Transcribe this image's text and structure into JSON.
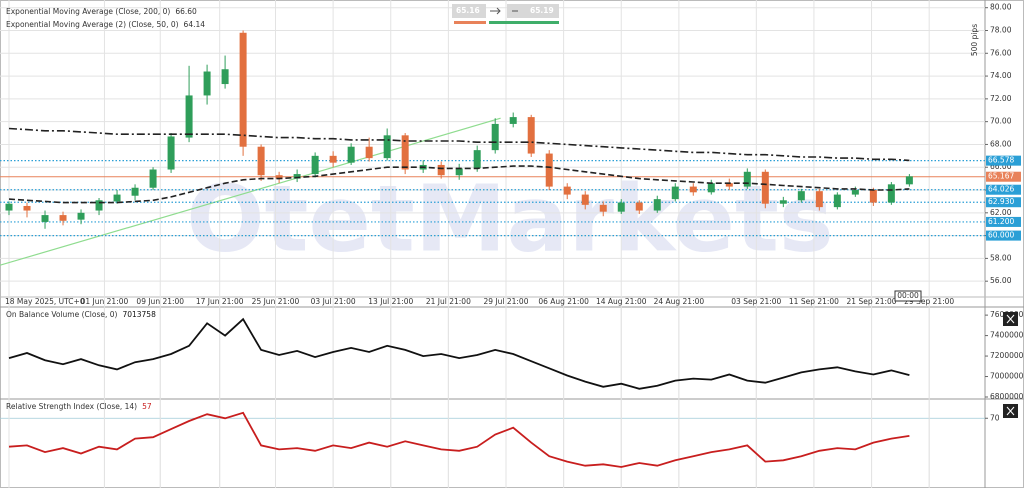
{
  "chart_data": [
    {
      "type": "candlestick",
      "watermark": "OtetMarkets",
      "sell_label": "65.16",
      "buy_label": "65.19",
      "scale_label": "500 pips",
      "time_label": "00:00",
      "up_color": "#2f9e5a",
      "down_color": "#e2703f",
      "xlim": [
        -0.5,
        54.2
      ],
      "xticks": [
        {
          "value": 0,
          "label": "18 May 2025, UTC+0"
        },
        {
          "value": 5.3,
          "label": "01 Jun 21:00"
        },
        {
          "value": 8.4,
          "label": "09 Jun 21:00"
        },
        {
          "value": 11.7,
          "label": "17 Jun 21:00"
        },
        {
          "value": 14.8,
          "label": "25 Jun 21:00"
        },
        {
          "value": 18,
          "label": "03 Jul 21:00"
        },
        {
          "value": 21.2,
          "label": "13 Jul 21:00"
        },
        {
          "value": 24.4,
          "label": "21 Jul 21:00"
        },
        {
          "value": 27.6,
          "label": "29 Jul 21:00"
        },
        {
          "value": 30.8,
          "label": "06 Aug 21:00"
        },
        {
          "value": 34,
          "label": "14 Aug 21:00"
        },
        {
          "value": 37.2,
          "label": "24 Aug 21:00"
        },
        {
          "value": 41.5,
          "label": "03 Sep 21:00"
        },
        {
          "value": 44.7,
          "label": "11 Sep 21:00"
        },
        {
          "value": 47.9,
          "label": "21 Sep 21:00"
        },
        {
          "value": 51.1,
          "label": "29 Sep 21:00"
        }
      ],
      "ylim": [
        54.7,
        80.5
      ],
      "yticks": [
        {
          "value": 56,
          "label": "56.00"
        },
        {
          "value": 58,
          "label": "58.00"
        },
        {
          "value": 60,
          "label": "60.00"
        },
        {
          "value": 62,
          "label": "62.00"
        },
        {
          "value": 64,
          "label": "64.00"
        },
        {
          "value": 66,
          "label": "66.00"
        },
        {
          "value": 68,
          "label": "68.00"
        },
        {
          "value": 70,
          "label": "70.00"
        },
        {
          "value": 72,
          "label": "72.00"
        },
        {
          "value": 74,
          "label": "74.00"
        },
        {
          "value": 76,
          "label": "76.00"
        },
        {
          "value": 78,
          "label": "78.00"
        },
        {
          "value": 80,
          "label": "80.00"
        }
      ],
      "grid": true,
      "open": [
        62.2,
        62.6,
        61.2,
        61.8,
        61.4,
        62.2,
        63.0,
        63.5,
        64.2,
        65.8,
        68.6,
        72.3,
        73.3,
        77.8,
        67.8,
        65.3,
        65.0,
        65.4,
        67.0,
        66.4,
        67.8,
        66.8,
        68.8,
        65.8,
        66.2,
        65.3,
        65.9,
        67.5,
        69.8,
        70.4,
        67.2,
        64.3,
        63.6,
        62.7,
        62.1,
        62.9,
        62.2,
        63.2,
        64.3,
        63.8,
        64.6,
        64.3,
        65.6,
        62.8,
        63.1,
        63.9,
        62.5,
        63.6,
        64.0,
        62.9,
        64.5
      ],
      "close": [
        62.8,
        62.2,
        61.8,
        61.3,
        62.0,
        63.1,
        63.6,
        64.2,
        65.8,
        68.7,
        72.3,
        74.4,
        74.6,
        67.8,
        65.3,
        65.0,
        65.4,
        67.0,
        66.4,
        67.8,
        66.8,
        68.8,
        65.8,
        66.2,
        65.3,
        65.9,
        67.5,
        69.8,
        70.4,
        67.2,
        64.3,
        63.6,
        62.7,
        62.1,
        62.9,
        62.2,
        63.2,
        64.3,
        63.8,
        64.6,
        64.3,
        65.6,
        62.8,
        63.1,
        63.9,
        62.5,
        63.6,
        64.0,
        62.9,
        64.5,
        65.2
      ],
      "high": [
        63.0,
        62.9,
        62.2,
        62.1,
        62.3,
        63.3,
        64.0,
        64.5,
        66.0,
        69.0,
        74.9,
        75.0,
        75.8,
        78.0,
        68.0,
        65.6,
        65.8,
        67.3,
        67.4,
        68.1,
        68.6,
        69.4,
        69.0,
        66.6,
        66.5,
        66.3,
        67.9,
        70.3,
        70.8,
        70.6,
        67.5,
        64.6,
        63.9,
        63.0,
        63.2,
        63.1,
        63.5,
        64.6,
        64.6,
        64.9,
        65.0,
        65.9,
        65.8,
        63.4,
        64.1,
        64.1,
        63.8,
        64.3,
        64.2,
        64.7,
        65.4
      ],
      "low": [
        61.8,
        61.6,
        60.6,
        60.9,
        61.0,
        61.8,
        62.8,
        63.1,
        64.0,
        65.5,
        68.2,
        71.5,
        72.9,
        67.0,
        64.8,
        64.6,
        64.7,
        65.1,
        66.0,
        66.2,
        66.5,
        66.6,
        65.4,
        65.5,
        65.0,
        64.9,
        65.6,
        67.2,
        69.5,
        66.9,
        64.0,
        63.2,
        62.3,
        61.7,
        61.9,
        61.9,
        62.0,
        63.0,
        63.5,
        63.6,
        64.0,
        64.1,
        62.4,
        62.5,
        62.9,
        62.2,
        62.3,
        63.4,
        62.6,
        62.7,
        64.3
      ],
      "series": [
        {
          "name": "Exponential Moving Average (Close, 200, 0)",
          "last_label": "66.60",
          "color": "#222222",
          "dash": "8 3 2 3",
          "values": [
            69.4,
            69.3,
            69.2,
            69.2,
            69.1,
            69.0,
            68.9,
            68.9,
            68.9,
            68.9,
            68.9,
            68.9,
            68.9,
            68.8,
            68.7,
            68.6,
            68.6,
            68.5,
            68.5,
            68.4,
            68.4,
            68.4,
            68.3,
            68.3,
            68.3,
            68.3,
            68.2,
            68.2,
            68.2,
            68.2,
            68.1,
            68.0,
            67.9,
            67.8,
            67.7,
            67.6,
            67.5,
            67.4,
            67.3,
            67.3,
            67.2,
            67.1,
            67.1,
            67.0,
            66.9,
            66.9,
            66.8,
            66.8,
            66.7,
            66.7,
            66.6
          ]
        },
        {
          "name": "Exponential Moving Average (2) (Close, 50, 0)",
          "last_label": "64.14",
          "color": "#222222",
          "dash": "6 3",
          "values": [
            63.2,
            63.1,
            63.0,
            62.9,
            62.9,
            62.9,
            62.9,
            63.0,
            63.1,
            63.4,
            63.8,
            64.2,
            64.6,
            64.9,
            65.0,
            65.0,
            65.1,
            65.2,
            65.4,
            65.6,
            65.8,
            66.0,
            66.0,
            66.0,
            65.9,
            65.9,
            65.9,
            66.0,
            66.1,
            66.1,
            66.0,
            65.8,
            65.6,
            65.4,
            65.2,
            65.0,
            64.9,
            64.8,
            64.7,
            64.6,
            64.6,
            64.6,
            64.5,
            64.4,
            64.3,
            64.2,
            64.1,
            64.1,
            64.0,
            64.0,
            64.1
          ]
        }
      ],
      "trendline": {
        "x": [
          -0.5,
          27.3
        ],
        "y": [
          57.4,
          70.3
        ],
        "color": "#8fdc8f"
      },
      "levels": [
        66.578,
        64.026,
        {
          "value": 62.93,
          "label": "62.930"
        },
        {
          "value": 61.2,
          "label": "61.200"
        },
        {
          "value": 60,
          "label": "60.000"
        }
      ],
      "level_color": "#2a9fd6",
      "price": 65.167,
      "price_color": "#e8825a"
    },
    {
      "type": "line",
      "name": "On Balance Volume (Close, 0)",
      "color": "#111111",
      "xlim": [
        -0.5,
        54.2
      ],
      "ylim": [
        6800000,
        7650000
      ],
      "yticks": [
        6800000,
        7000000,
        7200000,
        7400000,
        7600000
      ],
      "values": [
        7180000,
        7230000,
        7160000,
        7120000,
        7170000,
        7110000,
        7070000,
        7140000,
        7170000,
        7220000,
        7300000,
        7520000,
        7400000,
        7560000,
        7260000,
        7210000,
        7250000,
        7190000,
        7240000,
        7280000,
        7240000,
        7300000,
        7260000,
        7200000,
        7220000,
        7180000,
        7210000,
        7260000,
        7220000,
        7150000,
        7080000,
        7010000,
        6950000,
        6900000,
        6930000,
        6880000,
        6910000,
        6960000,
        6980000,
        6970000,
        7020000,
        6960000,
        6940000,
        6990000,
        7040000,
        7070000,
        7090000,
        7050000,
        7020000,
        7060000,
        7013758
      ]
    },
    {
      "type": "line",
      "name": "Relative Strength Index (Close, 14)",
      "color": "#c81e1e",
      "xlim": [
        -0.5,
        54.2
      ],
      "ylim": [
        20,
        82
      ],
      "yticks": [
        70
      ],
      "values": [
        49,
        50,
        45,
        48,
        44,
        49,
        47,
        55,
        56,
        62,
        68,
        73,
        70,
        74,
        50,
        47,
        48,
        46,
        50,
        48,
        52,
        49,
        53,
        50,
        47,
        46,
        49,
        58,
        63,
        52,
        42,
        38,
        35,
        36,
        34,
        37,
        35,
        39,
        42,
        45,
        47,
        50,
        38,
        39,
        42,
        46,
        48,
        47,
        52,
        55,
        57
      ]
    }
  ]
}
